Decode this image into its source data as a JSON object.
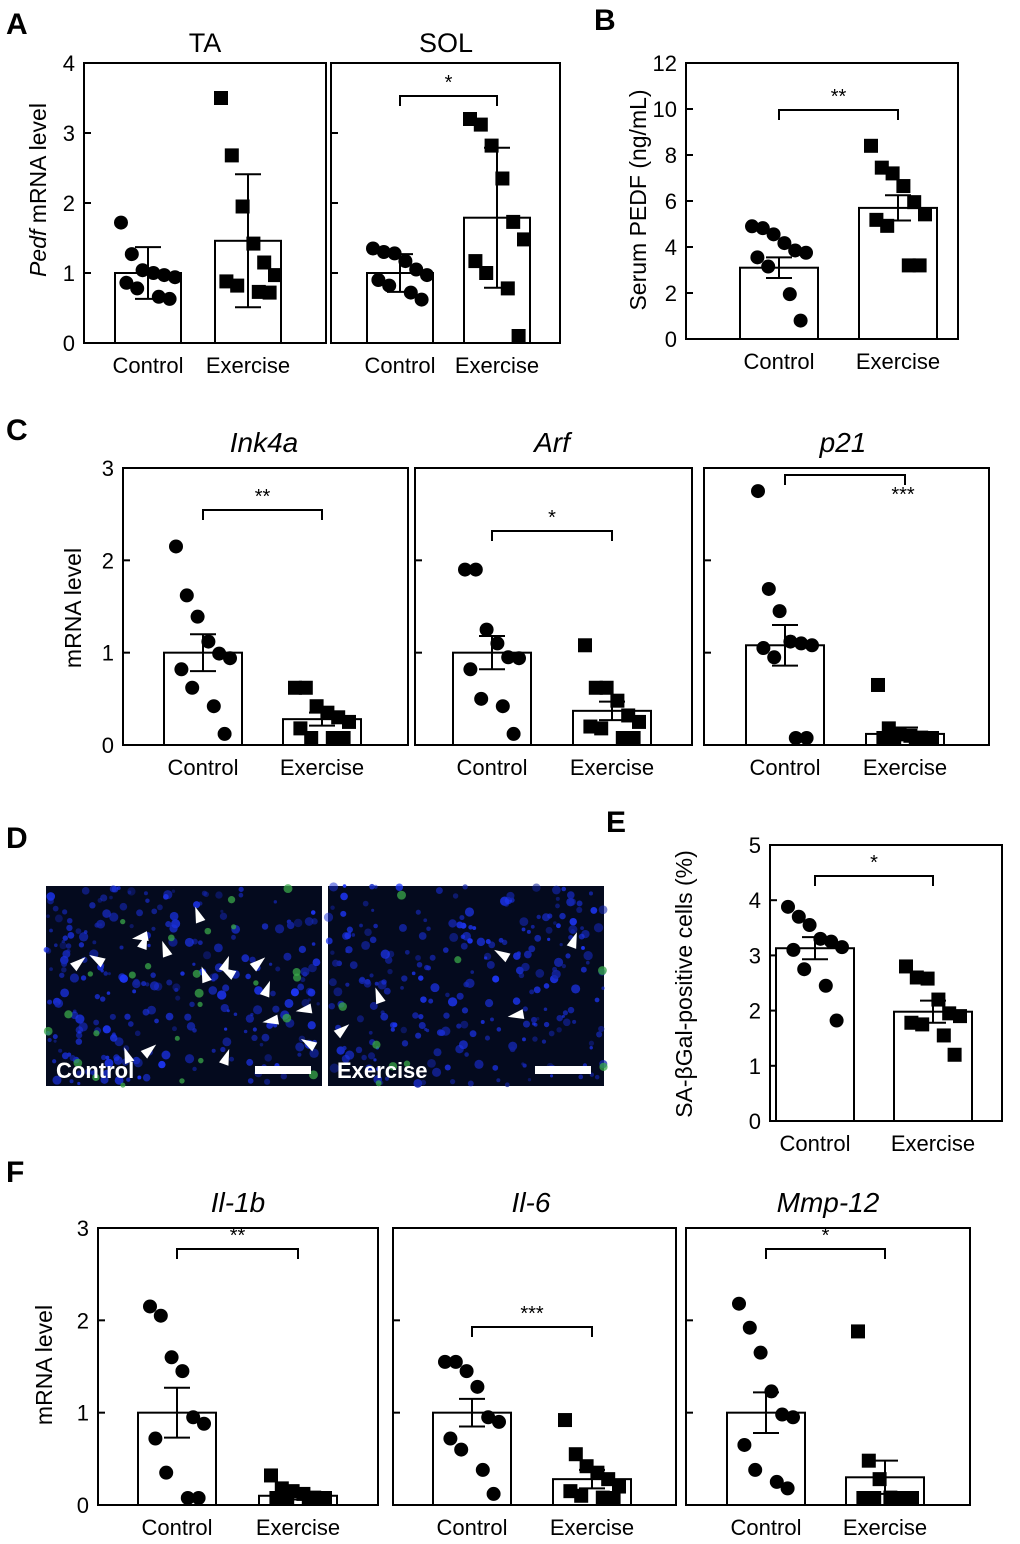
{
  "panel_labels": [
    "A",
    "B",
    "C",
    "D",
    "E",
    "F"
  ],
  "chart_data": [
    {
      "type": "bar",
      "panel": "A",
      "title": "TA",
      "ylabel_italic": "Pedf",
      "ylabel": " mRNA level",
      "ylim": [
        0,
        4
      ],
      "yticks": [
        "0",
        "1",
        "2",
        "3",
        "4"
      ],
      "categories": [
        "Control",
        "Exercise"
      ],
      "values": [
        1.0,
        1.46
      ],
      "errors": [
        0.37,
        0.95
      ],
      "error_style": "sd",
      "points": [
        [
          1.72,
          1.27,
          1.04,
          1.0,
          0.97,
          0.94,
          0.86,
          0.78,
          0.66,
          0.63
        ],
        [
          3.5,
          2.68,
          1.95,
          1.42,
          1.15,
          0.97,
          0.88,
          0.82,
          0.73,
          0.72
        ]
      ],
      "significance": ""
    },
    {
      "type": "bar",
      "panel": "A",
      "title": "SOL",
      "ylim": [
        0,
        4
      ],
      "categories": [
        "Control",
        "Exercise"
      ],
      "values": [
        1.0,
        1.79
      ],
      "errors": [
        0.27,
        1.0
      ],
      "error_style": "sd",
      "points": [
        [
          1.35,
          1.3,
          1.28,
          1.17,
          1.05,
          0.97,
          0.9,
          0.82,
          0.72,
          0.62
        ],
        [
          3.2,
          3.12,
          2.82,
          2.35,
          1.73,
          1.48,
          1.17,
          1.0,
          0.78,
          0.1
        ]
      ],
      "significance": "*"
    },
    {
      "type": "bar",
      "panel": "B",
      "ylabel": "Serum PEDF (ng/mL)",
      "ylim": [
        0,
        12
      ],
      "yticks": [
        "0",
        "2",
        "4",
        "6",
        "8",
        "10",
        "12"
      ],
      "categories": [
        "Control",
        "Exercise"
      ],
      "values": [
        3.1,
        5.7
      ],
      "errors": [
        0.45,
        0.55
      ],
      "error_style": "sem",
      "points": [
        [
          4.9,
          4.82,
          4.55,
          4.17,
          3.85,
          3.75,
          3.55,
          3.15,
          1.95,
          0.8
        ],
        [
          8.4,
          7.45,
          7.2,
          6.65,
          5.95,
          5.42,
          5.18,
          4.92,
          3.2,
          3.2
        ]
      ],
      "significance": "**"
    },
    {
      "type": "bar",
      "panel": "C",
      "title": "Ink4a",
      "title_italic": true,
      "ylabel": "mRNA level",
      "ylim": [
        0,
        3
      ],
      "yticks": [
        "0",
        "1",
        "2",
        "3"
      ],
      "categories": [
        "Control",
        "Exercise"
      ],
      "values": [
        1.0,
        0.28
      ],
      "errors": [
        0.2,
        0.07
      ],
      "error_style": "sem",
      "points": [
        [
          2.15,
          1.62,
          1.39,
          1.12,
          0.99,
          0.94,
          0.82,
          0.62,
          0.42,
          0.12
        ],
        [
          0.62,
          0.62,
          0.42,
          0.35,
          0.3,
          0.25,
          0.18,
          0.05,
          0.05,
          0.05
        ]
      ],
      "significance": "**"
    },
    {
      "type": "bar",
      "panel": "C",
      "title": "Arf",
      "title_italic": true,
      "ylim": [
        0,
        3
      ],
      "categories": [
        "Control",
        "Exercise"
      ],
      "values": [
        1.0,
        0.37
      ],
      "errors": [
        0.18,
        0.1
      ],
      "error_style": "sem",
      "points": [
        [
          1.9,
          1.9,
          1.25,
          1.1,
          0.95,
          0.94,
          0.82,
          0.5,
          0.42,
          0.12
        ],
        [
          1.08,
          0.62,
          0.62,
          0.48,
          0.32,
          0.25,
          0.2,
          0.18,
          0.05,
          0.05
        ]
      ],
      "significance": "*"
    },
    {
      "type": "bar",
      "panel": "C",
      "title": "p21",
      "title_italic": true,
      "ylim": [
        0,
        3
      ],
      "categories": [
        "Control",
        "Exercise"
      ],
      "values": [
        1.08,
        0.12
      ],
      "errors": [
        0.22,
        0.07
      ],
      "error_style": "sem",
      "points": [
        [
          2.75,
          1.69,
          1.45,
          1.12,
          1.1,
          1.08,
          1.05,
          0.95,
          0.05,
          0.05
        ],
        [
          0.65,
          0.18,
          0.12,
          0.1,
          0.08,
          0.06,
          0.05,
          0.04,
          0.03,
          0.02
        ]
      ],
      "significance": "***"
    },
    {
      "type": "bar",
      "panel": "E",
      "ylabel": "SA-βGal-positive cells (%)",
      "ylim": [
        0,
        5
      ],
      "yticks": [
        "0",
        "1",
        "2",
        "3",
        "4",
        "5"
      ],
      "categories": [
        "Control",
        "Exercise"
      ],
      "values": [
        3.13,
        1.98
      ],
      "errors": [
        0.2,
        0.2
      ],
      "error_style": "sem",
      "points": [
        [
          3.88,
          3.7,
          3.55,
          3.3,
          3.25,
          3.15,
          3.1,
          2.75,
          2.45,
          1.82
        ],
        [
          2.8,
          2.6,
          2.58,
          2.2,
          1.95,
          1.9,
          1.78,
          1.75,
          1.55,
          1.2
        ]
      ],
      "significance": "*"
    },
    {
      "type": "bar",
      "panel": "F",
      "title": "Il-1b",
      "title_italic": true,
      "ylabel": "mRNA level",
      "ylim": [
        0,
        3
      ],
      "yticks": [
        "0",
        "1",
        "2",
        "3"
      ],
      "categories": [
        "Control",
        "Exercise"
      ],
      "values": [
        1.0,
        0.1
      ],
      "errors": [
        0.27,
        0.04
      ],
      "error_style": "sem",
      "points": [
        [
          2.15,
          2.05,
          1.6,
          1.45,
          0.95,
          0.88,
          0.72,
          0.35,
          0.05,
          0.05
        ],
        [
          0.32,
          0.18,
          0.15,
          0.12,
          0.08,
          0.06,
          0.05,
          0.04,
          0.03,
          0.02
        ]
      ],
      "significance": "**"
    },
    {
      "type": "bar",
      "panel": "F",
      "title": "Il-6",
      "title_italic": true,
      "ylim": [
        0,
        3
      ],
      "categories": [
        "Control",
        "Exercise"
      ],
      "values": [
        1.0,
        0.28
      ],
      "errors": [
        0.15,
        0.1
      ],
      "error_style": "sem",
      "points": [
        [
          1.55,
          1.55,
          1.45,
          1.28,
          0.95,
          0.9,
          0.72,
          0.6,
          0.38,
          0.12
        ],
        [
          0.92,
          0.55,
          0.42,
          0.35,
          0.28,
          0.2,
          0.15,
          0.1,
          0.08,
          0.05
        ]
      ],
      "significance": "***"
    },
    {
      "type": "bar",
      "panel": "F",
      "title": "Mmp-12",
      "title_italic": true,
      "ylim": [
        0,
        3
      ],
      "categories": [
        "Control",
        "Exercise"
      ],
      "values": [
        1.0,
        0.3
      ],
      "errors": [
        0.22,
        0.18
      ],
      "error_style": "sem",
      "points": [
        [
          2.18,
          1.92,
          1.65,
          1.23,
          0.98,
          0.95,
          0.65,
          0.38,
          0.25,
          0.18
        ],
        [
          1.88,
          0.48,
          0.28,
          0.08,
          0.06,
          0.05,
          0.04,
          0.03,
          0.02,
          0.02
        ]
      ],
      "significance": "*"
    }
  ],
  "micrographs": [
    {
      "label": "Control",
      "arrowheads": 17
    },
    {
      "label": "Exercise",
      "arrowheads": 5
    }
  ]
}
